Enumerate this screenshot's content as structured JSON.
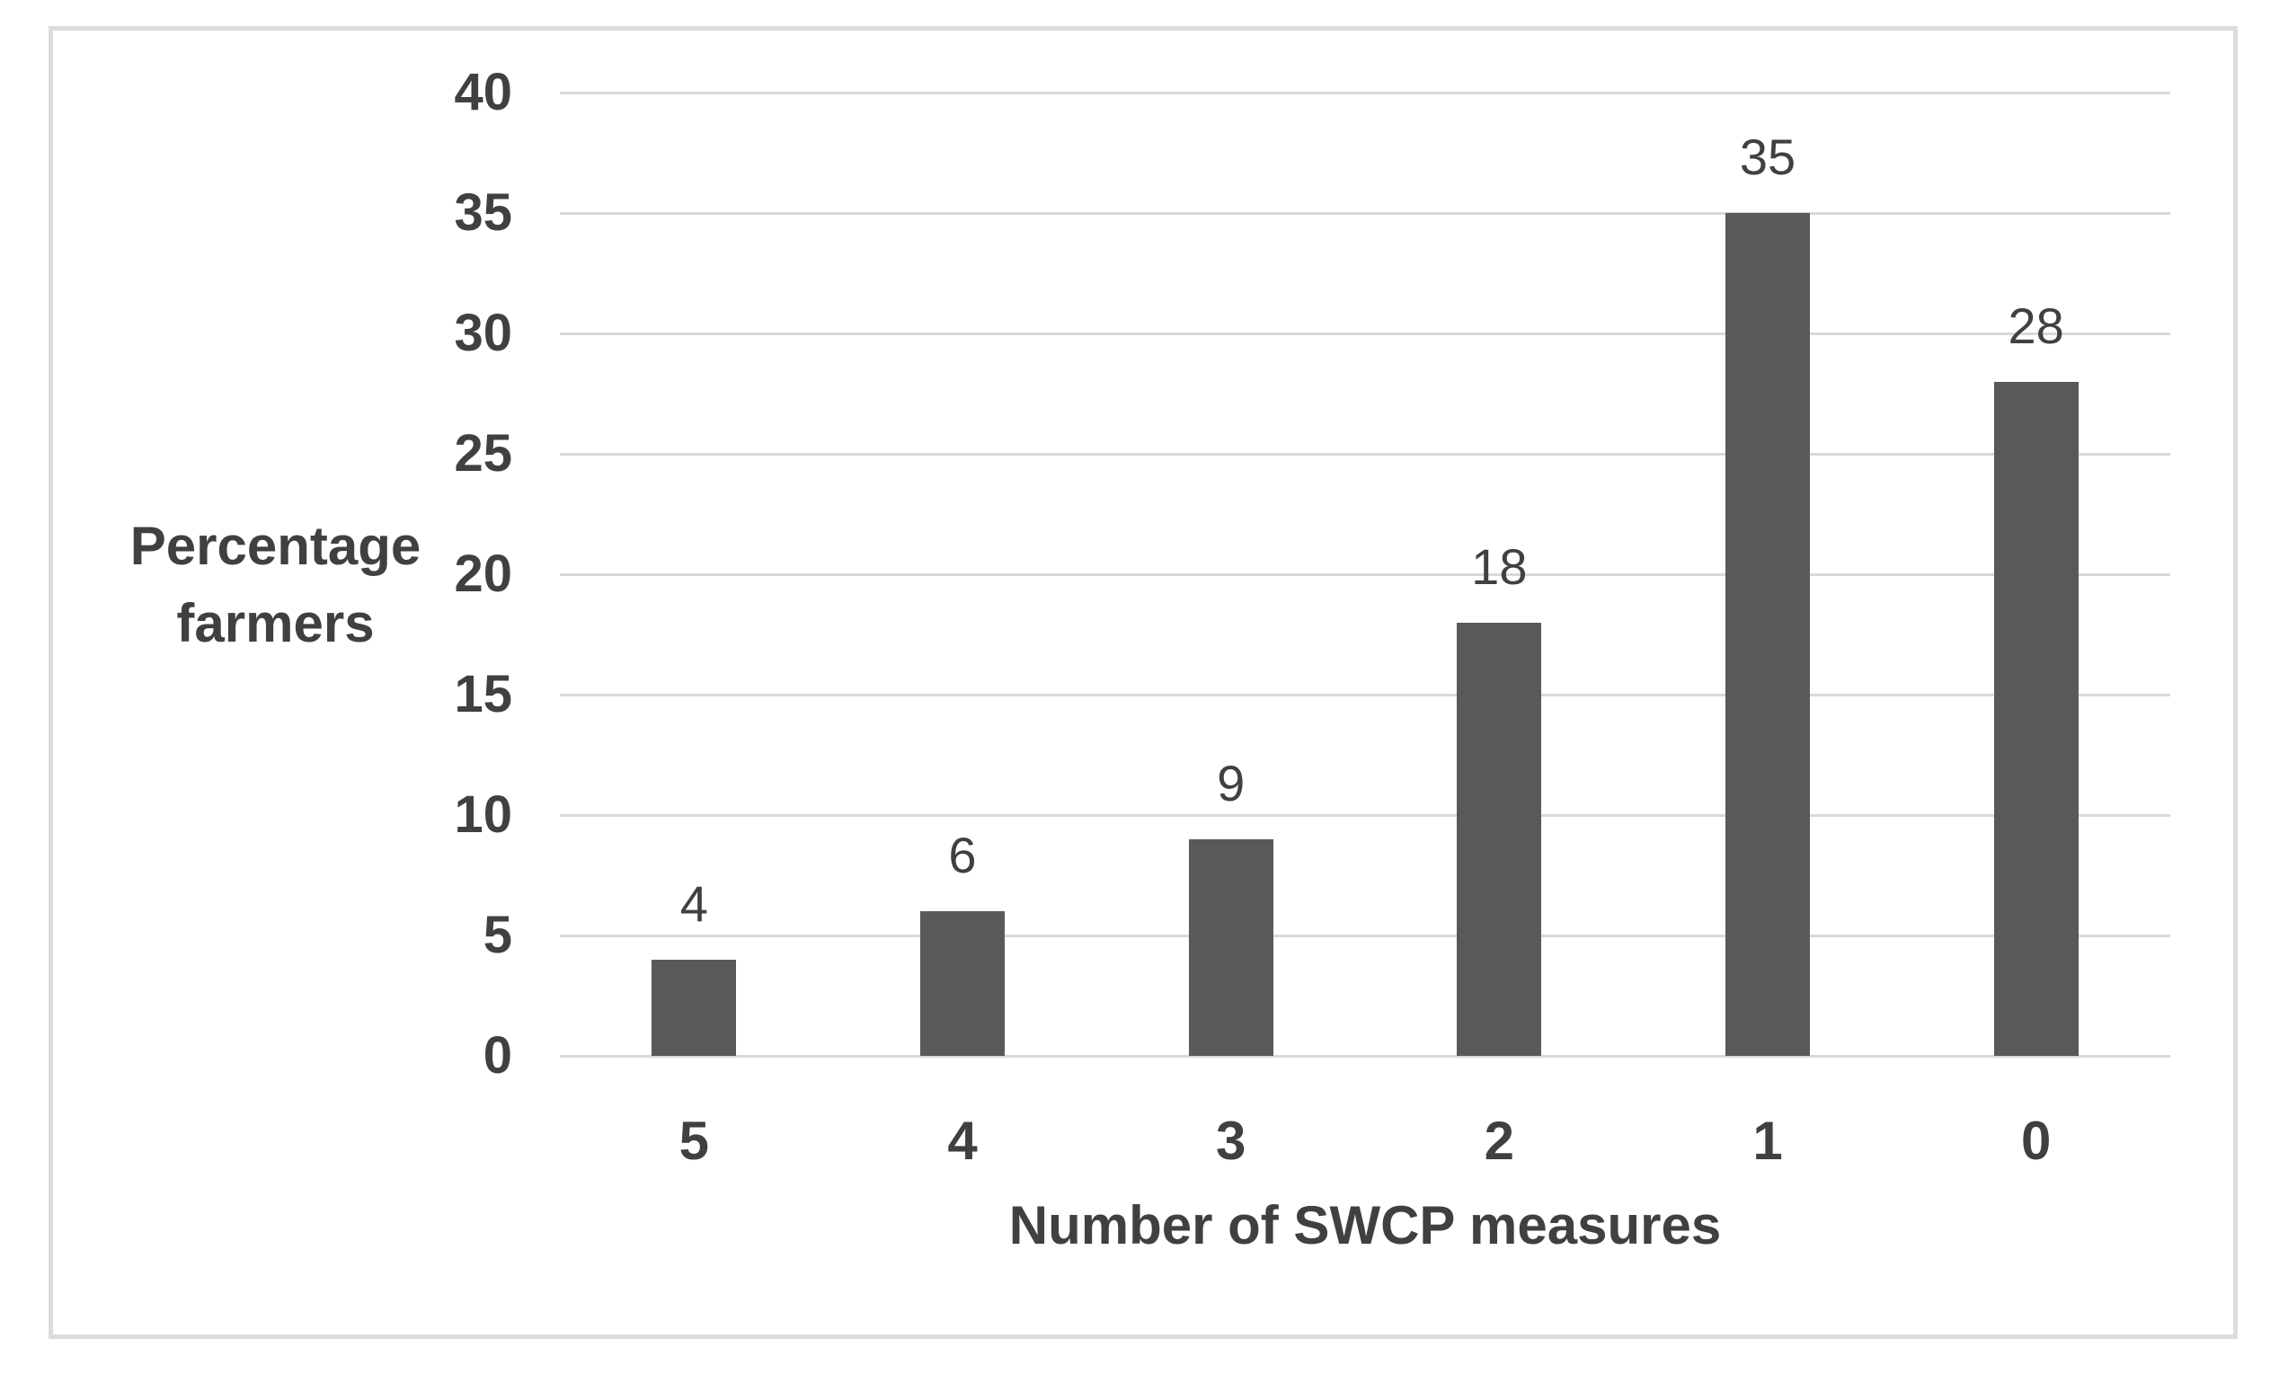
{
  "chart_data": {
    "type": "bar",
    "title": "",
    "categories": [
      "5",
      "4",
      "3",
      "2",
      "1",
      "0"
    ],
    "values": [
      4,
      6,
      9,
      18,
      35,
      28
    ],
    "xlabel": "Number of SWCP measures",
    "ylabel": "Percentage farmers",
    "ylim": [
      0,
      40
    ],
    "yticks": [
      0,
      5,
      10,
      15,
      20,
      25,
      30,
      35,
      40
    ],
    "grid": true,
    "legend": false,
    "data_labels_shown": true,
    "colors": {
      "bar": "#595959",
      "gridline": "#d9d9d9",
      "text": "#404040",
      "frame_border": "#dcdcdc",
      "background": "#ffffff"
    }
  }
}
